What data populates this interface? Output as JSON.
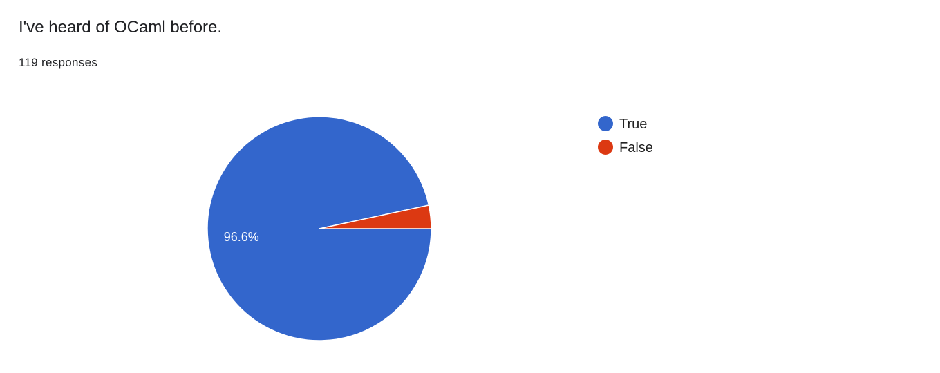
{
  "title": "I've heard of OCaml before.",
  "subtitle": "119 responses",
  "chart_data": {
    "type": "pie",
    "title": "I've heard of OCaml before.",
    "categories": [
      "True",
      "False"
    ],
    "values": [
      115,
      4
    ],
    "percent_labels": [
      "96.6%",
      ""
    ],
    "colors": [
      "#3366cc",
      "#dc3912"
    ],
    "legend": "right"
  }
}
